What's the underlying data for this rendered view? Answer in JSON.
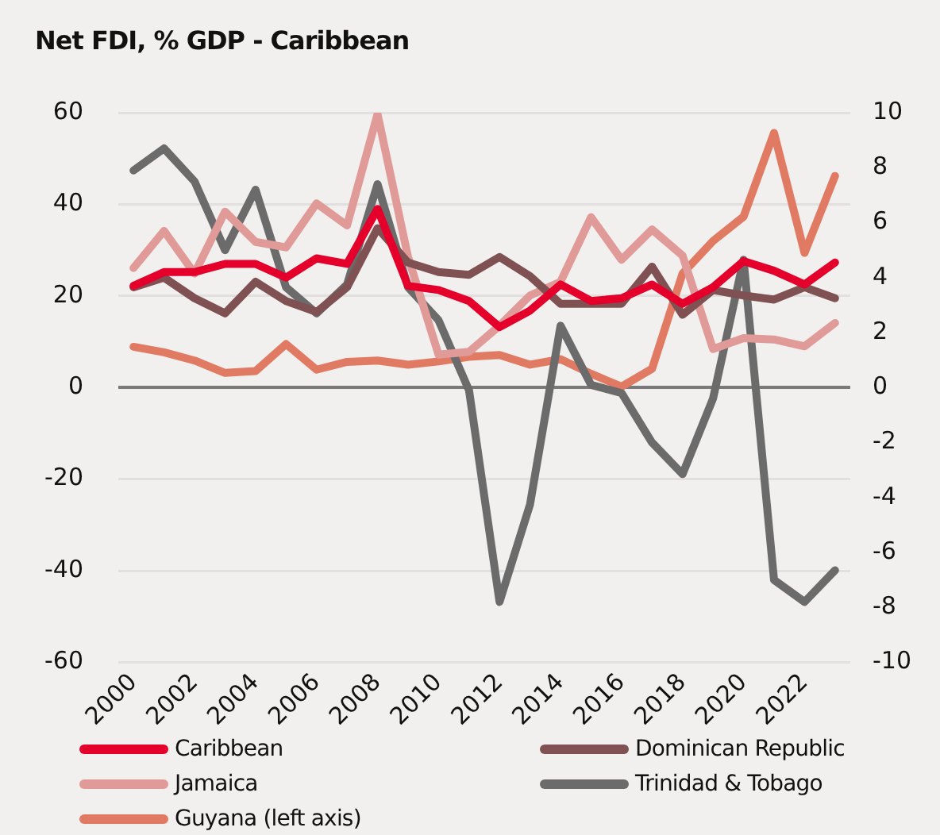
{
  "chart_data": {
    "type": "line",
    "title": "Net FDI, % GDP - Caribbean",
    "categories": [
      "2000",
      null,
      "2002",
      null,
      "2004",
      null,
      "2006",
      null,
      "2008",
      null,
      "2010",
      null,
      "2012",
      null,
      "2014",
      null,
      "2016",
      null,
      "2018",
      null,
      "2020",
      null,
      "2022",
      null
    ],
    "series": [
      {
        "name": "Caribbean",
        "color": "#e4002b",
        "axis": "y2",
        "values": [
          3.7,
          4.2,
          4.2,
          4.5,
          4.5,
          4.0,
          4.7,
          4.5,
          6.5,
          3.7,
          3.55,
          3.15,
          2.2,
          2.8,
          3.75,
          3.15,
          3.25,
          3.75,
          3.05,
          3.65,
          4.6,
          4.25,
          3.75,
          4.55
        ]
      },
      {
        "name": "Dominican Republic",
        "color": "#7f5152",
        "axis": "y2",
        "values": [
          3.65,
          4.0,
          3.25,
          2.7,
          3.85,
          3.15,
          2.75,
          3.65,
          5.8,
          4.55,
          4.2,
          4.1,
          4.75,
          4.05,
          3.05,
          3.05,
          3.05,
          4.4,
          2.65,
          3.55,
          3.35,
          3.2,
          3.65,
          3.25
        ]
      },
      {
        "name": "Jamaica",
        "color": "#e09a98",
        "axis": "y2",
        "values": [
          4.35,
          5.7,
          4.15,
          6.4,
          5.3,
          5.1,
          6.7,
          5.9,
          9.95,
          4.75,
          1.2,
          1.3,
          2.25,
          3.35,
          3.85,
          6.2,
          4.65,
          5.75,
          4.8,
          1.4,
          1.8,
          1.75,
          1.5,
          2.35
        ]
      },
      {
        "name": "Trinidad & Tobago",
        "color": "#6b6b6b",
        "axis": "y2",
        "values": [
          7.9,
          8.7,
          7.5,
          5.0,
          7.2,
          3.65,
          2.7,
          3.75,
          7.4,
          3.65,
          2.45,
          -0.1,
          -7.8,
          -4.25,
          2.25,
          0.1,
          -0.2,
          -2.0,
          -3.15,
          -0.4,
          4.65,
          -7.0,
          -7.8,
          -6.65
        ]
      },
      {
        "name": "Guyana (left axis)",
        "color": "#e07a63",
        "values": [
          8.9,
          7.7,
          5.9,
          3.2,
          3.6,
          9.5,
          3.9,
          5.6,
          5.9,
          5.0,
          5.7,
          6.7,
          7.1,
          5.0,
          6.2,
          3.0,
          0.2,
          4.1,
          24.9,
          32,
          37.3,
          55.6,
          29.4,
          46.2
        ]
      }
    ],
    "ylim": [
      -60,
      60
    ],
    "yticks": [
      -60,
      -40,
      -20,
      0,
      20,
      40,
      60
    ],
    "y2lim": [
      -10,
      10
    ],
    "y2ticks": [
      -10,
      -8,
      -6,
      -4,
      -2,
      0,
      2,
      4,
      6,
      8,
      10
    ],
    "grid": "y",
    "legend": "bottom",
    "marker": "none",
    "line_style": "solid"
  }
}
